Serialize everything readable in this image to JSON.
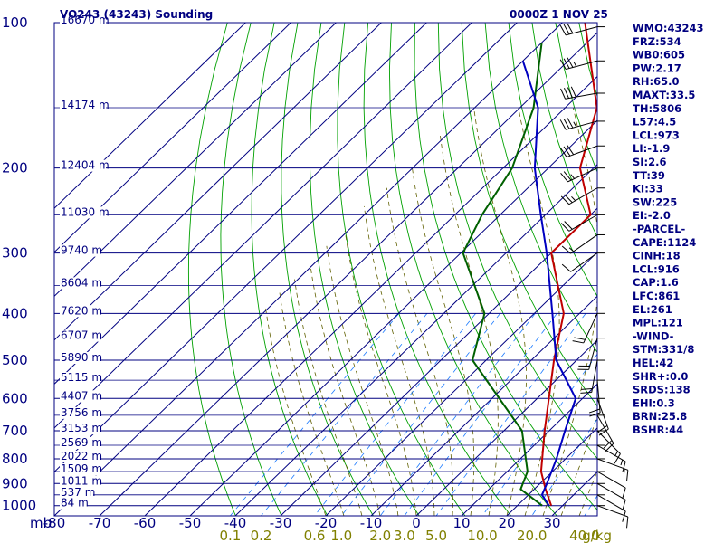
{
  "header": {
    "title": "VO243 (43243) Sounding",
    "time": "0000Z  1 NOV 25"
  },
  "colors": {
    "frame": "#000080",
    "isotherm": "#000080",
    "dry_adiabat": "#00a000",
    "moist_adiabat": "#606000",
    "mixing_ratio": "#1a7aff",
    "temperature": "#c00000",
    "dewpoint": "#006000",
    "parcel": "#0000c0",
    "wind": "#000000",
    "mixing_label": "#808000"
  },
  "chart_data": {
    "type": "skew-t",
    "title": "VO243 (43243) Sounding",
    "valid_time": "0000Z  1 NOV 25",
    "pressure_axis": {
      "label": "mb",
      "ticks": [
        100,
        200,
        300,
        400,
        500,
        600,
        700,
        800,
        900,
        1000
      ],
      "range": [
        100,
        1050
      ]
    },
    "temperature_axis": {
      "ticks": [
        -80,
        -70,
        -60,
        -50,
        -40,
        -30,
        -20,
        -10,
        0,
        10,
        20,
        30
      ],
      "range": [
        -80,
        40
      ]
    },
    "height_labels": [
      {
        "p": 100,
        "label": "16670 m"
      },
      {
        "p": 150,
        "label": "14174 m"
      },
      {
        "p": 200,
        "label": "12404 m"
      },
      {
        "p": 250,
        "label": "11030 m"
      },
      {
        "p": 300,
        "label": "9740 m"
      },
      {
        "p": 350,
        "label": "8604 m"
      },
      {
        "p": 400,
        "label": "7620 m"
      },
      {
        "p": 450,
        "label": "6707 m"
      },
      {
        "p": 500,
        "label": "5890 m"
      },
      {
        "p": 550,
        "label": "5115 m"
      },
      {
        "p": 600,
        "label": "4407 m"
      },
      {
        "p": 650,
        "label": "3756 m"
      },
      {
        "p": 700,
        "label": "3153 m"
      },
      {
        "p": 750,
        "label": "2569 m"
      },
      {
        "p": 800,
        "label": "2022 m"
      },
      {
        "p": 850,
        "label": "1509 m"
      },
      {
        "p": 900,
        "label": "1011 m"
      },
      {
        "p": 950,
        "label": "537 m"
      },
      {
        "p": 1000,
        "label": "84 m"
      }
    ],
    "mixing_ratio_axis": {
      "label": "g/kg",
      "values": [
        {
          "w": 0.1,
          "label": "0.1"
        },
        {
          "w": 0.2,
          "label": "0.2"
        },
        {
          "w": 0.6,
          "label": "0.6"
        },
        {
          "w": 1.0,
          "label": "1.0"
        },
        {
          "w": 2.0,
          "label": "2.0"
        },
        {
          "w": 3.0,
          "label": "3.0"
        },
        {
          "w": 5.0,
          "label": "5.0"
        },
        {
          "w": 10.0,
          "label": "10.0"
        },
        {
          "w": 20.0,
          "label": "20.0"
        },
        {
          "w": 40.0,
          "label": "40.0"
        }
      ]
    },
    "series": [
      {
        "name": "Temperature",
        "color": "#c00000",
        "points": [
          [
            1000,
            27.5
          ],
          [
            925,
            22.5
          ],
          [
            850,
            17.5
          ],
          [
            700,
            9.0
          ],
          [
            500,
            -5.0
          ],
          [
            400,
            -13.5
          ],
          [
            300,
            -30.0
          ],
          [
            250,
            -30.0
          ],
          [
            200,
            -43.0
          ],
          [
            150,
            -53.0
          ],
          [
            100,
            -75.0
          ]
        ]
      },
      {
        "name": "Dewpoint",
        "color": "#006000",
        "points": [
          [
            1000,
            25.5
          ],
          [
            925,
            17.0
          ],
          [
            850,
            14.5
          ],
          [
            700,
            4.0
          ],
          [
            500,
            -23.0
          ],
          [
            400,
            -31.0
          ],
          [
            300,
            -49.5
          ],
          [
            250,
            -54.0
          ],
          [
            200,
            -58.0
          ],
          [
            150,
            -67.0
          ],
          [
            110,
            -80.0
          ]
        ]
      },
      {
        "name": "Parcel",
        "color": "#0000c0",
        "points": [
          [
            1000,
            27.0
          ],
          [
            950,
            23.0
          ],
          [
            900,
            21.5
          ],
          [
            800,
            18.0
          ],
          [
            700,
            13.5
          ],
          [
            600,
            8.5
          ],
          [
            500,
            -4.5
          ],
          [
            400,
            -16.0
          ],
          [
            300,
            -31.0
          ],
          [
            250,
            -41.0
          ],
          [
            200,
            -53.0
          ],
          [
            150,
            -66.0
          ],
          [
            120,
            -80.0
          ]
        ]
      }
    ],
    "wind_barbs": [
      {
        "p": 102,
        "dir": 75,
        "spd": 30
      },
      {
        "p": 120,
        "dir": 75,
        "spd": 35
      },
      {
        "p": 140,
        "dir": 80,
        "spd": 40
      },
      {
        "p": 160,
        "dir": 75,
        "spd": 35
      },
      {
        "p": 180,
        "dir": 70,
        "spd": 30
      },
      {
        "p": 200,
        "dir": 65,
        "spd": 25
      },
      {
        "p": 220,
        "dir": 60,
        "spd": 25
      },
      {
        "p": 250,
        "dir": 60,
        "spd": 20
      },
      {
        "p": 275,
        "dir": 55,
        "spd": 15
      },
      {
        "p": 300,
        "dir": 55,
        "spd": 10
      },
      {
        "p": 400,
        "dir": 25,
        "spd": 20
      },
      {
        "p": 450,
        "dir": 15,
        "spd": 20
      },
      {
        "p": 500,
        "dir": 10,
        "spd": 20
      },
      {
        "p": 550,
        "dir": 355,
        "spd": 20
      },
      {
        "p": 600,
        "dir": 340,
        "spd": 20
      },
      {
        "p": 650,
        "dir": 330,
        "spd": 20
      },
      {
        "p": 700,
        "dir": 315,
        "spd": 15
      },
      {
        "p": 750,
        "dir": 300,
        "spd": 15
      },
      {
        "p": 800,
        "dir": 290,
        "spd": 15
      },
      {
        "p": 850,
        "dir": 300,
        "spd": 10
      },
      {
        "p": 900,
        "dir": 300,
        "spd": 10
      },
      {
        "p": 950,
        "dir": 300,
        "spd": 10
      },
      {
        "p": 1000,
        "dir": 290,
        "spd": 10
      }
    ]
  },
  "indices": [
    "WMO:43243",
    "FRZ:534",
    "WB0:605",
    "PW:2.17",
    "RH:65.0",
    "MAXT:33.5",
    "TH:5806",
    "L57:4.5",
    "LCL:973",
    "LI:-1.9",
    "SI:2.6",
    "TT:39",
    "KI:33",
    "SW:225",
    "EI:-2.0",
    "-PARCEL-",
    "CAPE:1124",
    "CINH:18",
    "LCL:916",
    "CAP:1.6",
    "LFC:861",
    "EL:261",
    "MPL:121",
    "-WIND-",
    "STM:331/8",
    "HEL:42",
    "SHR+:0.0",
    "SRDS:138",
    "EHI:0.3",
    "BRN:25.8",
    "BSHR:44"
  ]
}
